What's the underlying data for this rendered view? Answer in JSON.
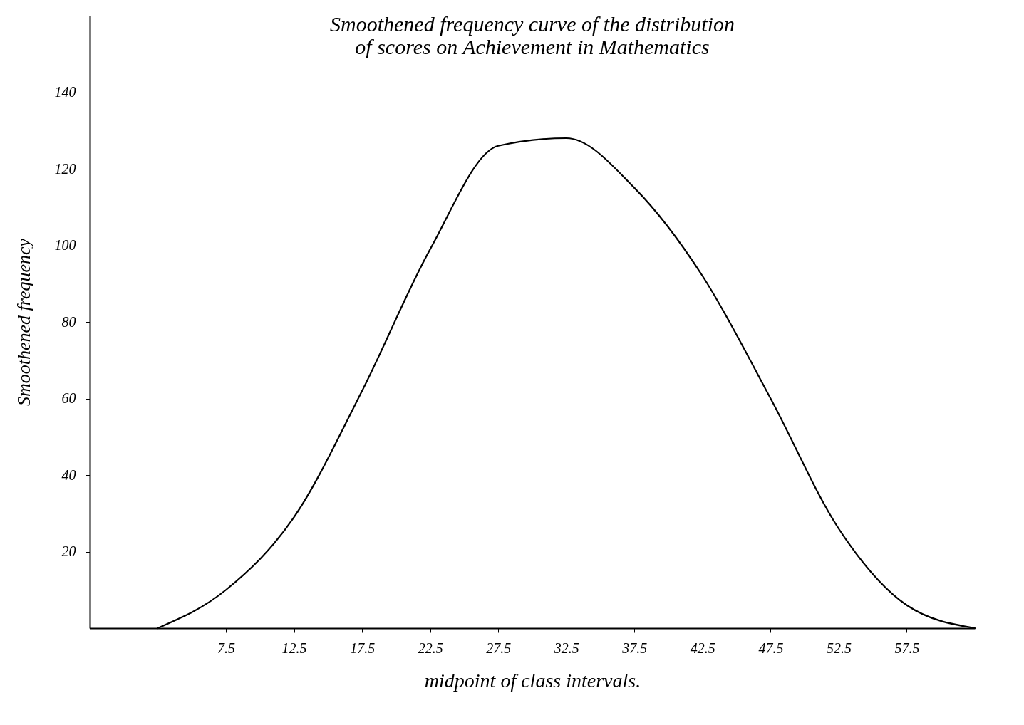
{
  "chart_data": {
    "type": "line",
    "title": "Smoothened frequency curve of the distribution\nof scores on Achievement in Mathematics",
    "xlabel": "midpoint of class intervals.",
    "ylabel": "Smoothened frequency",
    "x": [
      2.5,
      7.5,
      12.5,
      17.5,
      22.5,
      27.5,
      32.5,
      37.5,
      42.5,
      47.5,
      52.5,
      57.5,
      62.5
    ],
    "series": [
      {
        "color": "#000000",
        "values": [
          0,
          10,
          29,
          62,
          99,
          126,
          128,
          115,
          92,
          60,
          26,
          6,
          0
        ]
      }
    ],
    "xlim": [
      -2.5,
      62.5
    ],
    "xticks": [
      7.5,
      12.5,
      17.5,
      22.5,
      27.5,
      32.5,
      37.5,
      42.5,
      47.5,
      52.5,
      57.5
    ],
    "ylim": [
      0,
      160
    ],
    "yticks": [
      20,
      40,
      60,
      80,
      100,
      120,
      140
    ],
    "grid": false,
    "marker": "none",
    "line_style": "solid"
  }
}
